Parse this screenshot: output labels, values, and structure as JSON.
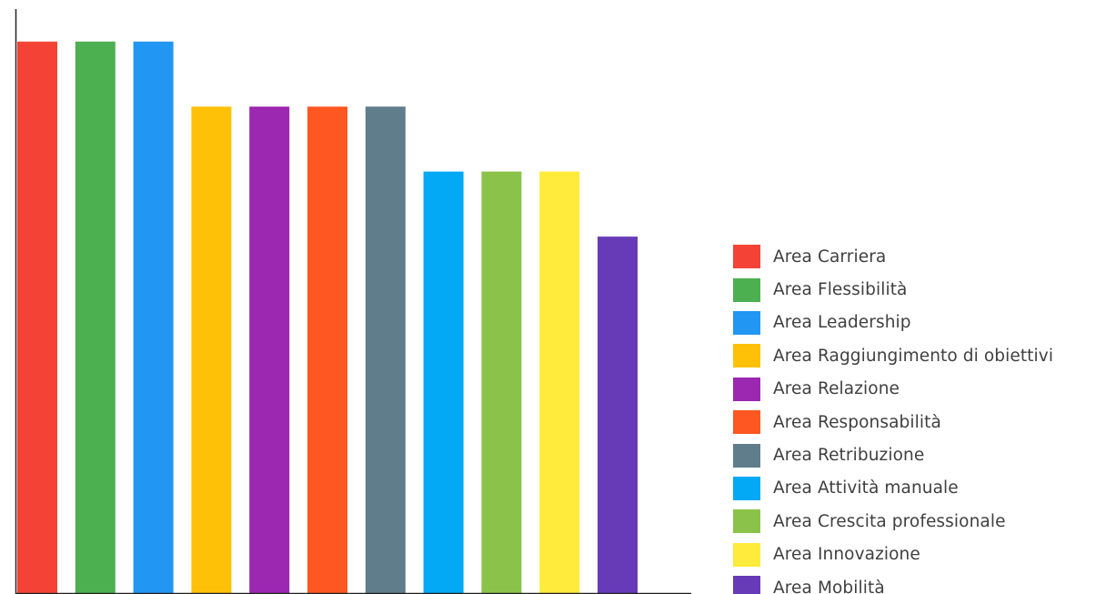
{
  "chart_data": {
    "type": "bar",
    "categories": [
      "Area Carriera",
      "Area Flessibilità",
      "Area Leadership",
      "Area Raggiungimento di obiettivi",
      "Area Relazione",
      "Area Responsabilità",
      "Area Retribuzione",
      "Area Attività manuale",
      "Area Crescita professionale",
      "Area Innovazione",
      "Area Mobilità"
    ],
    "values": [
      8.5,
      8.5,
      8.5,
      7.5,
      7.5,
      7.5,
      7.5,
      6.5,
      6.5,
      6.5,
      5.5
    ],
    "colors": [
      "#f44336",
      "#4caf50",
      "#2196f3",
      "#ffc107",
      "#9c27b0",
      "#ff5722",
      "#607d8b",
      "#03a9f4",
      "#8bc34a",
      "#ffeb3b",
      "#673ab7"
    ],
    "ylim": [
      0,
      9
    ],
    "grid": false,
    "axis_color": "#222222",
    "legend_position": "right"
  }
}
